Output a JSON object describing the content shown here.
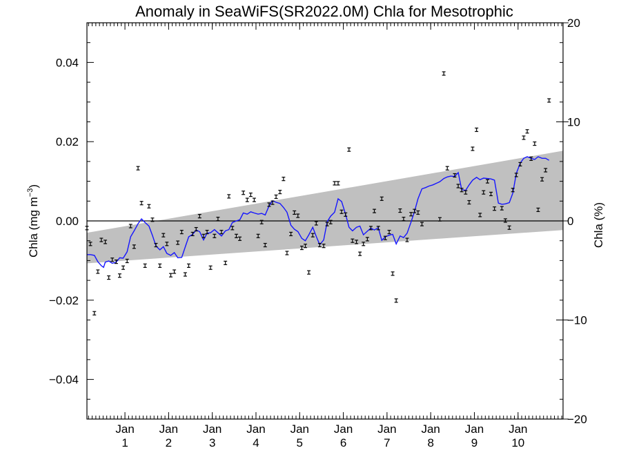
{
  "chart_data": {
    "type": "scatter",
    "title": "Anomaly in SeaWiFS(SR2022.0M) Chla for Mesotrophic",
    "ylabel_main": "Chla (mg m",
    "ylabel_sup": "−3",
    "ylabel_close": ")",
    "y2label": "Chla (%)",
    "ylim": [
      -0.05,
      0.05
    ],
    "y2lim": [
      -20,
      20
    ],
    "xlim": [
      0,
      10.9
    ],
    "yticks": [
      -0.04,
      -0.02,
      0.0,
      0.02,
      0.04
    ],
    "ytick_labels": [
      "−0.04",
      "−0.02",
      "0.00",
      "0.02",
      "0.04"
    ],
    "y2ticks": [
      -20,
      -10,
      0,
      10,
      20
    ],
    "y2tick_labels": [
      "−20",
      "−10",
      "0",
      "10",
      "20"
    ],
    "xticks": [
      {
        "t": 0.87,
        "label1": "Jan",
        "label2": "1"
      },
      {
        "t": 1.87,
        "label1": "Jan",
        "label2": "2"
      },
      {
        "t": 2.87,
        "label1": "Jan",
        "label2": "3"
      },
      {
        "t": 3.87,
        "label1": "Jan",
        "label2": "4"
      },
      {
        "t": 4.87,
        "label1": "Jan",
        "label2": "5"
      },
      {
        "t": 5.87,
        "label1": "Jan",
        "label2": "6"
      },
      {
        "t": 6.87,
        "label1": "Jan",
        "label2": "7"
      },
      {
        "t": 7.87,
        "label1": "Jan",
        "label2": "8"
      },
      {
        "t": 8.87,
        "label1": "Jan",
        "label2": "9"
      },
      {
        "t": 9.87,
        "label1": "Jan",
        "label2": "10"
      }
    ],
    "band": {
      "t": [
        0,
        10.9
      ],
      "lower": [
        -0.0107,
        -0.0023
      ],
      "upper": [
        -0.003,
        0.0177
      ],
      "color": "#c0c0c0"
    },
    "zero_line": 0.0,
    "line_color": "#1414ff",
    "marker_color": "#000000",
    "points": [
      [
        0.0,
        -0.0018
      ],
      [
        0.08,
        -0.0058
      ],
      [
        0.17,
        -0.0233
      ],
      [
        0.25,
        -0.0128
      ],
      [
        0.33,
        -0.0048
      ],
      [
        0.42,
        -0.0053
      ],
      [
        0.5,
        -0.0143
      ],
      [
        0.58,
        -0.0098
      ],
      [
        0.67,
        -0.0103
      ],
      [
        0.75,
        -0.0138
      ],
      [
        0.83,
        -0.0118
      ],
      [
        0.92,
        -0.0101
      ],
      [
        1.0,
        -0.0013
      ],
      [
        1.08,
        -0.0065
      ],
      [
        1.17,
        0.0133
      ],
      [
        1.25,
        0.0045
      ],
      [
        1.33,
        -0.0113
      ],
      [
        1.42,
        0.0037
      ],
      [
        1.5,
        0.0003
      ],
      [
        1.58,
        -0.0061
      ],
      [
        1.67,
        -0.0113
      ],
      [
        1.75,
        -0.0036
      ],
      [
        1.83,
        -0.0058
      ],
      [
        1.92,
        -0.0137
      ],
      [
        2.0,
        -0.0128
      ],
      [
        2.08,
        -0.0055
      ],
      [
        2.17,
        -0.0028
      ],
      [
        2.25,
        -0.0135
      ],
      [
        2.33,
        -0.0113
      ],
      [
        2.42,
        -0.0033
      ],
      [
        2.5,
        -0.0021
      ],
      [
        2.58,
        0.0012
      ],
      [
        2.67,
        -0.0038
      ],
      [
        2.75,
        -0.0028
      ],
      [
        2.83,
        -0.0118
      ],
      [
        2.92,
        -0.0038
      ],
      [
        3.0,
        0.0005
      ],
      [
        3.08,
        -0.0028
      ],
      [
        3.17,
        -0.0106
      ],
      [
        3.25,
        0.0062
      ],
      [
        3.33,
        -0.0018
      ],
      [
        3.42,
        -0.0038
      ],
      [
        3.5,
        -0.0045
      ],
      [
        3.58,
        0.0071
      ],
      [
        3.67,
        0.0053
      ],
      [
        3.75,
        0.0066
      ],
      [
        3.83,
        0.0053
      ],
      [
        3.92,
        -0.0038
      ],
      [
        4.0,
        -0.0003
      ],
      [
        4.08,
        -0.0061
      ],
      [
        4.17,
        0.0041
      ],
      [
        4.25,
        0.0046
      ],
      [
        4.33,
        0.0061
      ],
      [
        4.42,
        0.0073
      ],
      [
        4.5,
        0.0106
      ],
      [
        4.58,
        -0.0081
      ],
      [
        4.67,
        -0.0033
      ],
      [
        4.75,
        0.0021
      ],
      [
        4.83,
        0.0013
      ],
      [
        4.92,
        -0.0068
      ],
      [
        5.0,
        -0.0063
      ],
      [
        5.08,
        -0.013
      ],
      [
        5.17,
        -0.0036
      ],
      [
        5.25,
        -0.0006
      ],
      [
        5.33,
        -0.0061
      ],
      [
        5.42,
        -0.0063
      ],
      [
        5.5,
        -0.0008
      ],
      [
        5.58,
        -0.0003
      ],
      [
        5.67,
        0.0095
      ],
      [
        5.75,
        0.0095
      ],
      [
        5.83,
        0.0023
      ],
      [
        5.92,
        0.0016
      ],
      [
        6.0,
        0.018
      ],
      [
        6.08,
        -0.005
      ],
      [
        6.17,
        -0.0053
      ],
      [
        6.25,
        -0.0083
      ],
      [
        6.33,
        -0.0058
      ],
      [
        6.42,
        -0.0046
      ],
      [
        6.5,
        -0.0018
      ],
      [
        6.58,
        0.0025
      ],
      [
        6.67,
        -0.0018
      ],
      [
        6.75,
        0.0056
      ],
      [
        6.83,
        -0.0043
      ],
      [
        6.92,
        -0.0028
      ],
      [
        7.0,
        -0.0133
      ],
      [
        7.08,
        -0.0201
      ],
      [
        7.17,
        0.0026
      ],
      [
        7.25,
        0.0005
      ],
      [
        7.33,
        -0.0048
      ],
      [
        7.42,
        0.0017
      ],
      [
        7.5,
        0.0025
      ],
      [
        7.58,
        0.0021
      ],
      [
        7.67,
        -0.0008
      ],
      [
        8.08,
        0.0004
      ],
      [
        8.17,
        0.0372
      ],
      [
        8.25,
        0.0133
      ],
      [
        8.42,
        0.0115
      ],
      [
        8.5,
        0.0088
      ],
      [
        8.58,
        0.0078
      ],
      [
        8.67,
        0.0072
      ],
      [
        8.75,
        0.0047
      ],
      [
        8.83,
        0.0182
      ],
      [
        8.92,
        0.023
      ],
      [
        9.0,
        0.0015
      ],
      [
        9.08,
        0.0072
      ],
      [
        9.17,
        0.01
      ],
      [
        9.25,
        0.0068
      ],
      [
        9.33,
        0.0031
      ],
      [
        9.5,
        0.0032
      ],
      [
        9.58,
        0.0001
      ],
      [
        9.67,
        -0.0017
      ],
      [
        9.75,
        0.0078
      ],
      [
        9.83,
        0.0116
      ],
      [
        9.92,
        0.0143
      ],
      [
        10.0,
        0.021
      ],
      [
        10.08,
        0.0226
      ],
      [
        10.17,
        0.0157
      ],
      [
        10.25,
        0.0195
      ],
      [
        10.33,
        0.0028
      ],
      [
        10.42,
        0.0105
      ],
      [
        10.5,
        0.0128
      ],
      [
        10.58,
        0.0304
      ]
    ],
    "running_mean": [
      [
        0.0,
        -0.0085
      ],
      [
        0.08,
        -0.0085
      ],
      [
        0.17,
        -0.0087
      ],
      [
        0.25,
        -0.0103
      ],
      [
        0.33,
        -0.0113
      ],
      [
        0.38,
        -0.0117
      ],
      [
        0.42,
        -0.0104
      ],
      [
        0.5,
        -0.0101
      ],
      [
        0.58,
        -0.0107
      ],
      [
        0.67,
        -0.0104
      ],
      [
        0.75,
        -0.0093
      ],
      [
        0.83,
        -0.0094
      ],
      [
        0.92,
        -0.0078
      ],
      [
        1.0,
        -0.004
      ],
      [
        1.08,
        -0.0025
      ],
      [
        1.17,
        -0.0007
      ],
      [
        1.25,
        0.0005
      ],
      [
        1.33,
        -0.0004
      ],
      [
        1.42,
        -0.0013
      ],
      [
        1.5,
        -0.0037
      ],
      [
        1.58,
        -0.0063
      ],
      [
        1.67,
        -0.0073
      ],
      [
        1.75,
        -0.0065
      ],
      [
        1.83,
        -0.0082
      ],
      [
        1.92,
        -0.0087
      ],
      [
        2.0,
        -0.008
      ],
      [
        2.08,
        -0.0093
      ],
      [
        2.17,
        -0.0092
      ],
      [
        2.25,
        -0.0066
      ],
      [
        2.33,
        -0.004
      ],
      [
        2.42,
        -0.0034
      ],
      [
        2.5,
        -0.0023
      ],
      [
        2.58,
        -0.0027
      ],
      [
        2.67,
        -0.0048
      ],
      [
        2.75,
        -0.0031
      ],
      [
        2.83,
        -0.003
      ],
      [
        2.92,
        -0.0022
      ],
      [
        3.0,
        -0.003
      ],
      [
        3.08,
        -0.0038
      ],
      [
        3.17,
        -0.0025
      ],
      [
        3.25,
        -0.0022
      ],
      [
        3.33,
        -0.0004
      ],
      [
        3.42,
        0.0
      ],
      [
        3.5,
        0.0003
      ],
      [
        3.58,
        0.002
      ],
      [
        3.67,
        0.0017
      ],
      [
        3.75,
        0.0023
      ],
      [
        3.83,
        0.002
      ],
      [
        3.92,
        0.0017
      ],
      [
        4.0,
        0.0019
      ],
      [
        4.08,
        0.0015
      ],
      [
        4.17,
        0.0038
      ],
      [
        4.25,
        0.0051
      ],
      [
        4.33,
        0.0047
      ],
      [
        4.42,
        0.0044
      ],
      [
        4.5,
        0.0034
      ],
      [
        4.58,
        0.0022
      ],
      [
        4.67,
        -0.0011
      ],
      [
        4.75,
        -0.0021
      ],
      [
        4.83,
        -0.0027
      ],
      [
        4.92,
        -0.0044
      ],
      [
        5.0,
        -0.005
      ],
      [
        5.08,
        -0.0035
      ],
      [
        5.17,
        -0.0016
      ],
      [
        5.25,
        -0.0039
      ],
      [
        5.33,
        -0.006
      ],
      [
        5.42,
        -0.0048
      ],
      [
        5.5,
        -0.0002
      ],
      [
        5.58,
        0.0012
      ],
      [
        5.67,
        0.0022
      ],
      [
        5.75,
        0.0056
      ],
      [
        5.83,
        0.0049
      ],
      [
        5.92,
        0.0017
      ],
      [
        6.0,
        -0.0016
      ],
      [
        6.08,
        -0.0025
      ],
      [
        6.17,
        -0.0016
      ],
      [
        6.25,
        -0.0013
      ],
      [
        6.33,
        -0.0035
      ],
      [
        6.42,
        -0.0026
      ],
      [
        6.5,
        -0.0018
      ],
      [
        6.58,
        -0.0023
      ],
      [
        6.67,
        -0.0017
      ],
      [
        6.75,
        -0.0049
      ],
      [
        6.83,
        -0.004
      ],
      [
        6.92,
        -0.0036
      ],
      [
        7.0,
        -0.0034
      ],
      [
        7.08,
        -0.0058
      ],
      [
        7.17,
        -0.0038
      ],
      [
        7.25,
        -0.0042
      ],
      [
        7.33,
        -0.0031
      ],
      [
        7.42,
        -0.0003
      ],
      [
        7.5,
        0.0024
      ],
      [
        7.58,
        0.0056
      ],
      [
        7.67,
        0.0081
      ],
      [
        7.75,
        0.0084
      ],
      [
        7.83,
        0.0088
      ],
      [
        7.92,
        0.0091
      ],
      [
        8.0,
        0.0095
      ],
      [
        8.08,
        0.0099
      ],
      [
        8.17,
        0.0107
      ],
      [
        8.25,
        0.0111
      ],
      [
        8.33,
        0.0113
      ],
      [
        8.42,
        0.0112
      ],
      [
        8.5,
        0.0122
      ],
      [
        8.58,
        0.0079
      ],
      [
        8.67,
        0.0077
      ],
      [
        8.75,
        0.0091
      ],
      [
        8.83,
        0.0103
      ],
      [
        8.92,
        0.011
      ],
      [
        9.0,
        0.0104
      ],
      [
        9.08,
        0.0108
      ],
      [
        9.17,
        0.0107
      ],
      [
        9.25,
        0.0106
      ],
      [
        9.33,
        0.0103
      ],
      [
        9.42,
        0.0045
      ],
      [
        9.5,
        0.0042
      ],
      [
        9.58,
        0.0043
      ],
      [
        9.67,
        0.0046
      ],
      [
        9.75,
        0.007
      ],
      [
        9.83,
        0.012
      ],
      [
        9.92,
        0.0146
      ],
      [
        10.0,
        0.0158
      ],
      [
        10.08,
        0.0162
      ],
      [
        10.17,
        0.0158
      ],
      [
        10.25,
        0.0155
      ],
      [
        10.33,
        0.0162
      ],
      [
        10.42,
        0.0158
      ],
      [
        10.5,
        0.0158
      ],
      [
        10.58,
        0.0153
      ]
    ]
  }
}
